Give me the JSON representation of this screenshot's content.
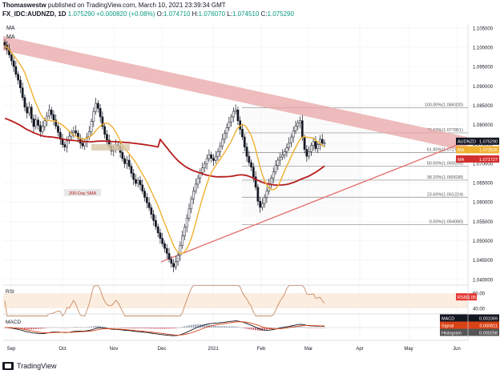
{
  "header": {
    "author": "Thomaswestw",
    "published_text": "published on TradingView.com, March 10, 2021 23:39:34 GMT",
    "symbol": "FX_IDC:AUDNZD, 1D",
    "last": "1.075290",
    "change": "+0.000820 (+0.08%)",
    "open_label": "O:",
    "open": "1.074710",
    "high_label": "H:",
    "high": "1.076070",
    "low_label": "L:",
    "low": "1.074510",
    "close_label": "C:",
    "close": "1.075290"
  },
  "indicator_labels": [
    "MA",
    "MA"
  ],
  "footer": {
    "brand": "TradingView"
  },
  "colors": {
    "ma_short": "#f0b030",
    "ma_long": "#b71c1c",
    "resistance_band": "#e8a5a5",
    "support_line": "#e57373",
    "price_badge": "#131722",
    "ma_short_badge": "#f0b030",
    "ma_long_badge": "#d32f2f",
    "rsi_badge": "#e53935",
    "macd_line": "#131722",
    "signal_line": "#d84315"
  },
  "chart_data": {
    "type": "candlestick",
    "x_ticks": [
      "Sep",
      "Oct",
      "Nov",
      "Dec",
      "2021",
      "Feb",
      "Mar",
      "Apr",
      "May",
      "Jun"
    ],
    "y_ticks": [
      "1.105000",
      "1.100000",
      "1.095000",
      "1.090000",
      "1.085000",
      "1.080000",
      "1.075000",
      "1.070000",
      "1.065000",
      "1.060000",
      "1.055000",
      "1.050000",
      "1.045000",
      "1.040000"
    ],
    "ylim": [
      1.0385,
      1.106
    ],
    "price_badges": [
      {
        "label": "AUDNZD",
        "value": "1.075290"
      },
      {
        "label": "MA",
        "value": "1.073505"
      },
      {
        "label": "MA",
        "value": "1.071727"
      }
    ],
    "fibonacci": [
      {
        "label": "100.00%(1.084320)",
        "value": 1.08432
      },
      {
        "label": "78.60%(1.077851)",
        "value": 1.077851
      },
      {
        "label": "61.80%(1.072774)",
        "value": 1.072774
      },
      {
        "label": "50.00%(1.069205)",
        "value": 1.069205
      },
      {
        "label": "38.20%(1.065638)",
        "value": 1.065638
      },
      {
        "label": "23.60%(1.061224)",
        "value": 1.061224
      },
      {
        "label": "0.00%(1.054090)",
        "value": 1.05409
      }
    ],
    "annotations": [
      "200-Day SMA"
    ],
    "close_series": [
      1.1005,
      1.0995,
      1.098,
      1.0965,
      1.095,
      1.093,
      1.0915,
      1.0895,
      1.087,
      1.0845,
      1.083,
      1.0845,
      1.0815,
      1.0795,
      1.0812,
      1.0798,
      1.0782,
      1.0795,
      1.081,
      1.0822,
      1.0838,
      1.0826,
      1.0812,
      1.0796,
      1.078,
      1.0762,
      1.0748,
      1.0742,
      1.0758,
      1.077,
      1.0779,
      1.0784,
      1.0778,
      1.0765,
      1.0752,
      1.0745,
      1.0755,
      1.0768,
      1.0782,
      1.0808,
      1.0834,
      1.0855,
      1.0842,
      1.082,
      1.0795,
      1.0775,
      1.076,
      1.0745,
      1.0732,
      1.0735,
      1.0748,
      1.0744,
      1.0728,
      1.0712,
      1.0699,
      1.0708,
      1.0692,
      1.0674,
      1.0658,
      1.0648,
      1.0656,
      1.0644,
      1.0628,
      1.0612,
      1.0598,
      1.0585,
      1.0568,
      1.0552,
      1.0536,
      1.052,
      1.0506,
      1.0492,
      1.048,
      1.0467,
      1.0452,
      1.0441,
      1.0432,
      1.0446,
      1.0462,
      1.0487,
      1.0512,
      1.0535,
      1.0558,
      1.0582,
      1.0608,
      1.0628,
      1.0646,
      1.0662,
      1.0676,
      1.0688,
      1.0698,
      1.0712,
      1.0722,
      1.0713,
      1.0707,
      1.0718,
      1.073,
      1.0744,
      1.0762,
      1.0778,
      1.0792,
      1.0806,
      1.082,
      1.0834,
      1.0838,
      1.081,
      1.0788,
      1.0768,
      1.0742,
      1.0718,
      1.0702,
      1.069,
      1.0665,
      1.0638,
      1.0602,
      1.0586,
      1.0596,
      1.0612,
      1.0628,
      1.0646,
      1.0662,
      1.0678,
      1.0694,
      1.0708,
      1.0716,
      1.0722,
      1.073,
      1.074,
      1.0753,
      1.0768,
      1.0784,
      1.0796,
      1.0804,
      1.081,
      1.0766,
      1.0736,
      1.0718,
      1.073,
      1.0746,
      1.0756,
      1.0738,
      1.0748,
      1.0762,
      1.0752,
      1.0753
    ],
    "rsi": {
      "label": "RSI",
      "value": "55.05",
      "ticks": [
        "60.00",
        "40.00"
      ]
    },
    "macd": {
      "label": "MACD",
      "value": "0.001069",
      "signal_label": "Signal",
      "signal_value": "0.000811",
      "hist_label": "Histogram",
      "hist_value": "0.000258"
    }
  }
}
